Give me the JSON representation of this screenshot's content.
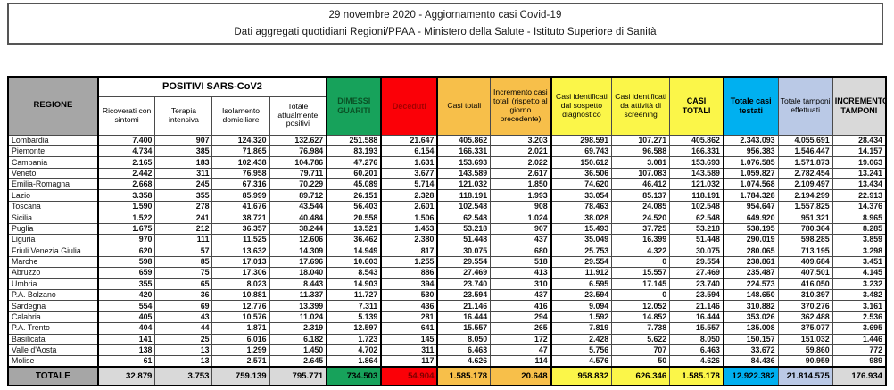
{
  "title": {
    "line1": "29 novembre 2020 - Aggiornamento casi Covid-19",
    "line2": "Dati aggregati quotidiani Regioni/PPAA - Ministero della Salute - Istituto Superiore di Sanità"
  },
  "table": {
    "header": {
      "regione": "REGIONE",
      "positivi_group": "POSITIVI SARS-CoV2",
      "columns": [
        "Ricoverati con sintomi",
        "Terapia intensiva",
        "Isolamento domiciliare",
        "Totale attualmente positivi",
        "DIMESSI GUARITI",
        "Deceduti",
        "Casi totali",
        "Incremento casi totali (rispetto al giorno precedente)",
        "Casi identificati dal sospetto diagnostico",
        "Casi identificati da attività di screening",
        "CASI TOTALI",
        "Totale casi testati",
        "Totale tamponi effettuati",
        "INCREMENTO TAMPONI"
      ]
    },
    "rows": [
      {
        "region": "Lombardia",
        "values": [
          "7.400",
          "907",
          "124.320",
          "132.627",
          "251.588",
          "21.647",
          "405.862",
          "3.203",
          "298.591",
          "107.271",
          "405.862",
          "2.343.093",
          "4.055.691",
          "28.434"
        ]
      },
      {
        "region": "Piemonte",
        "values": [
          "4.734",
          "385",
          "71.865",
          "76.984",
          "83.193",
          "6.154",
          "166.331",
          "2.021",
          "69.743",
          "96.588",
          "166.331",
          "956.383",
          "1.546.447",
          "14.157"
        ]
      },
      {
        "region": "Campania",
        "values": [
          "2.165",
          "183",
          "102.438",
          "104.786",
          "47.276",
          "1.631",
          "153.693",
          "2.022",
          "150.612",
          "3.081",
          "153.693",
          "1.076.585",
          "1.571.873",
          "19.063"
        ]
      },
      {
        "region": "Veneto",
        "values": [
          "2.442",
          "311",
          "76.958",
          "79.711",
          "60.201",
          "3.677",
          "143.589",
          "2.617",
          "36.506",
          "107.083",
          "143.589",
          "1.059.827",
          "2.782.454",
          "13.241"
        ]
      },
      {
        "region": "Emilia-Romagna",
        "values": [
          "2.668",
          "245",
          "67.316",
          "70.229",
          "45.089",
          "5.714",
          "121.032",
          "1.850",
          "74.620",
          "46.412",
          "121.032",
          "1.074.568",
          "2.109.497",
          "13.434"
        ]
      },
      {
        "region": "Lazio",
        "values": [
          "3.358",
          "355",
          "85.999",
          "89.712",
          "26.151",
          "2.328",
          "118.191",
          "1.993",
          "33.054",
          "85.137",
          "118.191",
          "1.784.328",
          "2.194.299",
          "22.913"
        ]
      },
      {
        "region": "Toscana",
        "values": [
          "1.590",
          "278",
          "41.676",
          "43.544",
          "56.403",
          "2.601",
          "102.548",
          "908",
          "78.463",
          "24.085",
          "102.548",
          "954.647",
          "1.557.825",
          "14.376"
        ]
      },
      {
        "region": "Sicilia",
        "values": [
          "1.522",
          "241",
          "38.721",
          "40.484",
          "20.558",
          "1.506",
          "62.548",
          "1.024",
          "38.028",
          "24.520",
          "62.548",
          "649.920",
          "951.321",
          "8.965"
        ]
      },
      {
        "region": "Puglia",
        "values": [
          "1.675",
          "212",
          "36.357",
          "38.244",
          "13.521",
          "1.453",
          "53.218",
          "907",
          "15.493",
          "37.725",
          "53.218",
          "538.195",
          "780.364",
          "8.285"
        ]
      },
      {
        "region": "Liguria",
        "values": [
          "970",
          "111",
          "11.525",
          "12.606",
          "36.462",
          "2.380",
          "51.448",
          "437",
          "35.049",
          "16.399",
          "51.448",
          "290.019",
          "598.285",
          "3.859"
        ]
      },
      {
        "region": "Friuli Venezia Giulia",
        "values": [
          "620",
          "57",
          "13.632",
          "14.309",
          "14.949",
          "817",
          "30.075",
          "680",
          "25.753",
          "4.322",
          "30.075",
          "280.065",
          "713.195",
          "3.298"
        ]
      },
      {
        "region": "Marche",
        "values": [
          "598",
          "85",
          "17.013",
          "17.696",
          "10.603",
          "1.255",
          "29.554",
          "518",
          "29.554",
          "0",
          "29.554",
          "238.861",
          "409.684",
          "3.451"
        ]
      },
      {
        "region": "Abruzzo",
        "values": [
          "659",
          "75",
          "17.306",
          "18.040",
          "8.543",
          "886",
          "27.469",
          "413",
          "11.912",
          "15.557",
          "27.469",
          "235.487",
          "407.501",
          "4.145"
        ]
      },
      {
        "region": "Umbria",
        "values": [
          "355",
          "65",
          "8.023",
          "8.443",
          "14.903",
          "394",
          "23.740",
          "310",
          "6.595",
          "17.145",
          "23.740",
          "224.573",
          "416.050",
          "3.232"
        ]
      },
      {
        "region": "P.A. Bolzano",
        "values": [
          "420",
          "36",
          "10.881",
          "11.337",
          "11.727",
          "530",
          "23.594",
          "437",
          "23.594",
          "0",
          "23.594",
          "148.650",
          "310.397",
          "3.482"
        ]
      },
      {
        "region": "Sardegna",
        "values": [
          "554",
          "69",
          "12.776",
          "13.399",
          "7.311",
          "436",
          "21.146",
          "416",
          "9.094",
          "12.052",
          "21.146",
          "310.882",
          "370.276",
          "3.161"
        ]
      },
      {
        "region": "Calabria",
        "values": [
          "405",
          "43",
          "10.576",
          "11.024",
          "5.139",
          "281",
          "16.444",
          "294",
          "1.592",
          "14.852",
          "16.444",
          "353.026",
          "362.488",
          "2.536"
        ]
      },
      {
        "region": "P.A. Trento",
        "values": [
          "404",
          "44",
          "1.871",
          "2.319",
          "12.597",
          "641",
          "15.557",
          "265",
          "7.819",
          "7.738",
          "15.557",
          "135.008",
          "375.077",
          "3.695"
        ]
      },
      {
        "region": "Basilicata",
        "values": [
          "141",
          "25",
          "6.016",
          "6.182",
          "1.723",
          "145",
          "8.050",
          "172",
          "2.428",
          "5.622",
          "8.050",
          "150.157",
          "151.032",
          "1.446"
        ]
      },
      {
        "region": "Valle d'Aosta",
        "values": [
          "138",
          "13",
          "1.299",
          "1.450",
          "4.702",
          "311",
          "6.463",
          "47",
          "5.756",
          "707",
          "6.463",
          "33.672",
          "59.860",
          "772"
        ]
      },
      {
        "region": "Molise",
        "values": [
          "61",
          "13",
          "2.571",
          "2.645",
          "1.864",
          "117",
          "4.626",
          "114",
          "4.576",
          "50",
          "4.626",
          "84.436",
          "90.959",
          "989"
        ]
      }
    ],
    "totals": {
      "label": "TOTALE",
      "values": [
        "32.879",
        "3.753",
        "759.139",
        "795.771",
        "734.503",
        "54.904",
        "1.585.178",
        "20.648",
        "958.832",
        "626.346",
        "1.585.178",
        "12.922.382",
        "21.814.575",
        "176.934"
      ]
    }
  },
  "colors": {
    "green": "#17a25b",
    "red": "#fb0007",
    "orange": "#f7bf4a",
    "yellow": "#fbf649",
    "cyan": "#00b0f0",
    "light_blue": "#bac9e6",
    "gray_header": "#a6a6a6",
    "gray_light": "#d9d9d9"
  }
}
